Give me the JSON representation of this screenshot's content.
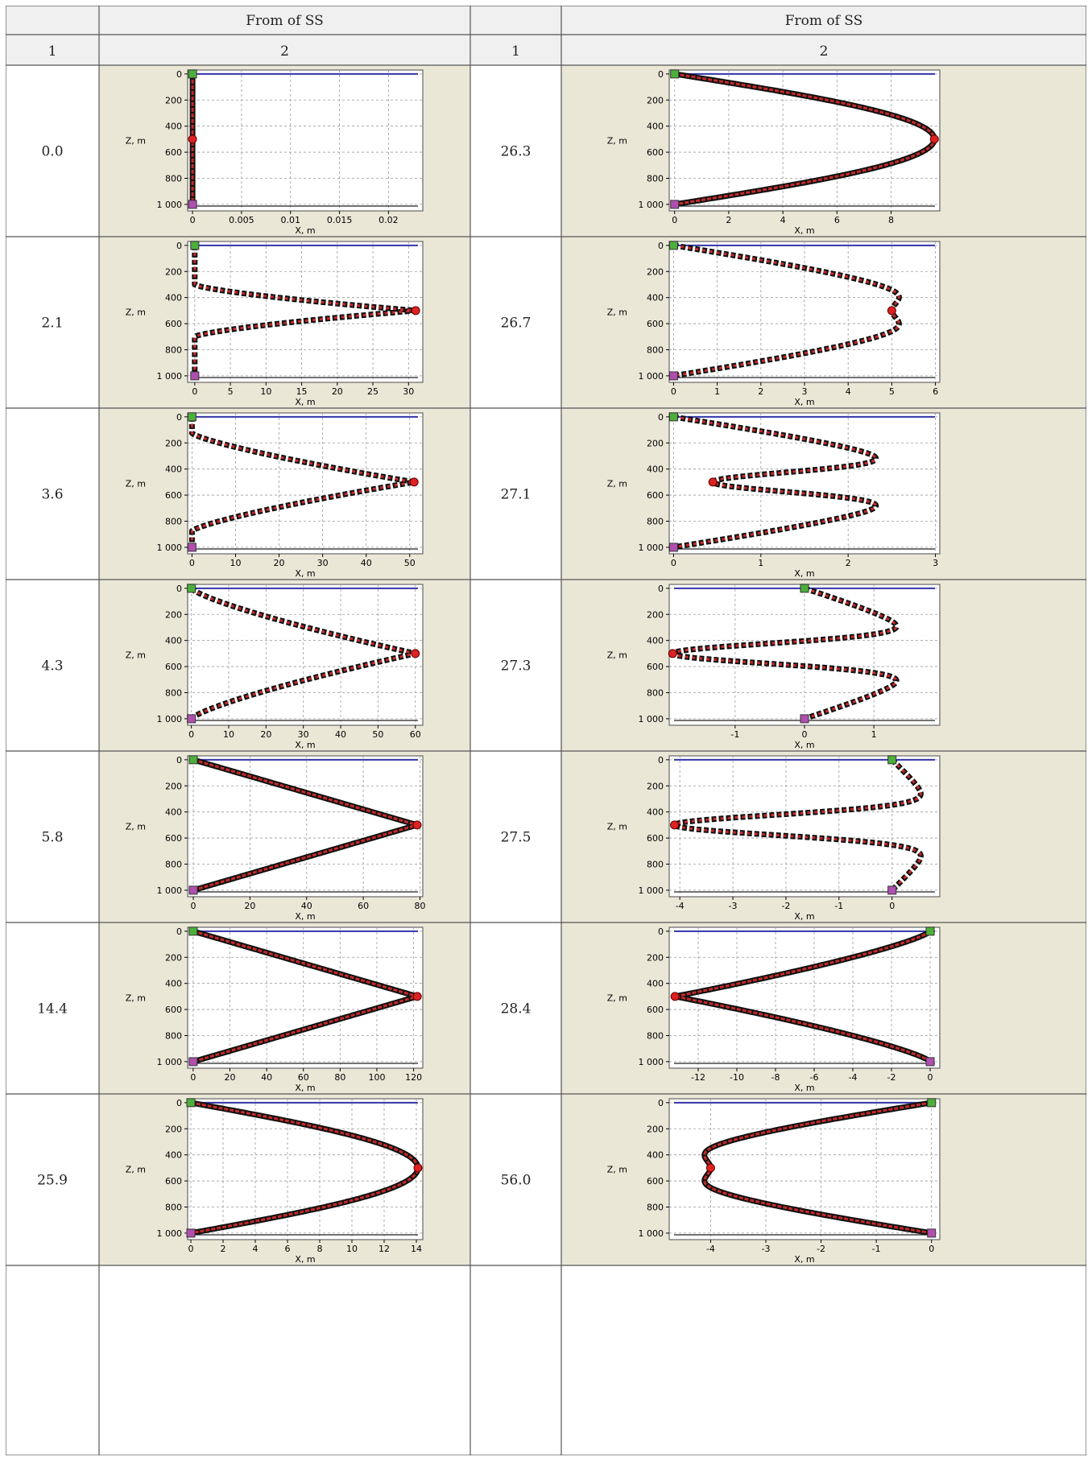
{
  "table": {
    "header1": [
      "",
      "From of SS",
      "",
      "From of SS"
    ],
    "header2": [
      "1",
      "2",
      "1",
      "2"
    ]
  },
  "axis_labels": {
    "y": "Z, m",
    "x": "X, m"
  },
  "colors": {
    "surface_line": "#3333aa",
    "bottom_line": "#222222",
    "curve_outer": "#111111",
    "curve_inner": "#c42a2a",
    "top_marker": "#4caf3a",
    "bottom_marker": "#b04fb0",
    "mid_marker": "#dd2222"
  },
  "chart_data": [
    {
      "type": "line",
      "label": "0.0",
      "ylabel": "Z, m",
      "xlabel": "X, m",
      "xlim": [
        -0.0005,
        0.0235
      ],
      "ylim": [
        1050,
        -30
      ],
      "xticks": [
        0,
        0.005,
        0.01,
        0.015,
        0.02
      ],
      "xticklabels": [
        "0",
        "0.005",
        "0.01",
        "0.015",
        "0.02"
      ],
      "yticks": [
        0,
        200,
        400,
        600,
        800,
        1000
      ],
      "yticklabels": [
        "0",
        "200",
        "400",
        "600",
        "800",
        "1 000"
      ],
      "shape": "vertical",
      "x_mid": 0,
      "x_top": 0,
      "x_bot": 0,
      "dash": 0
    },
    {
      "type": "line",
      "label": "2.1",
      "ylabel": "Z, m",
      "xlabel": "X, m",
      "xlim": [
        -1,
        32
      ],
      "ylim": [
        1050,
        -30
      ],
      "xticks": [
        0,
        5,
        10,
        15,
        20,
        25,
        30
      ],
      "xticklabels": [
        "0",
        "5",
        "10",
        "15",
        "20",
        "25",
        "30"
      ],
      "yticks": [
        0,
        200,
        400,
        600,
        800,
        1000
      ],
      "yticklabels": [
        "0",
        "200",
        "400",
        "600",
        "800",
        "1 000"
      ],
      "shape": "spike",
      "x_mid": 31,
      "x_top": 0,
      "x_bot": 0,
      "dash": 1
    },
    {
      "type": "line",
      "label": "3.6",
      "ylabel": "Z, m",
      "xlabel": "X, m",
      "xlim": [
        -1,
        53
      ],
      "ylim": [
        1050,
        -30
      ],
      "xticks": [
        0,
        10,
        20,
        30,
        40,
        50
      ],
      "xticklabels": [
        "0",
        "10",
        "20",
        "30",
        "40",
        "50"
      ],
      "yticks": [
        0,
        200,
        400,
        600,
        800,
        1000
      ],
      "yticklabels": [
        "0",
        "200",
        "400",
        "600",
        "800",
        "1 000"
      ],
      "shape": "spike2",
      "x_mid": 51,
      "x_top": 0,
      "x_bot": 0,
      "dash": 1
    },
    {
      "type": "line",
      "label": "4.3",
      "ylabel": "Z, m",
      "xlabel": "X, m",
      "xlim": [
        -1,
        62
      ],
      "ylim": [
        1050,
        -30
      ],
      "xticks": [
        0,
        10,
        20,
        30,
        40,
        50,
        60
      ],
      "xticklabels": [
        "0",
        "10",
        "20",
        "30",
        "40",
        "50",
        "60"
      ],
      "yticks": [
        0,
        200,
        400,
        600,
        800,
        1000
      ],
      "yticklabels": [
        "0",
        "200",
        "400",
        "600",
        "800",
        "1 000"
      ],
      "shape": "concave",
      "x_mid": 60,
      "x_top": 0,
      "x_bot": 0,
      "dash": 1
    },
    {
      "type": "line",
      "label": "5.8",
      "ylabel": "Z, m",
      "xlabel": "X, m",
      "xlim": [
        -2,
        81
      ],
      "ylim": [
        1050,
        -30
      ],
      "xticks": [
        0,
        20,
        40,
        60,
        80
      ],
      "xticklabels": [
        "0",
        "20",
        "40",
        "60",
        "80"
      ],
      "yticks": [
        0,
        200,
        400,
        600,
        800,
        1000
      ],
      "yticklabels": [
        "0",
        "200",
        "400",
        "600",
        "800",
        "1 000"
      ],
      "shape": "linear",
      "x_mid": 79,
      "x_top": 0,
      "x_bot": 0,
      "dash": 0
    },
    {
      "type": "line",
      "label": "14.4",
      "ylabel": "Z, m",
      "xlabel": "X, m",
      "xlim": [
        -3,
        125
      ],
      "ylim": [
        1050,
        -30
      ],
      "xticks": [
        0,
        20,
        40,
        60,
        80,
        100,
        120
      ],
      "xticklabels": [
        "0",
        "20",
        "40",
        "60",
        "80",
        "100",
        "120"
      ],
      "yticks": [
        0,
        200,
        400,
        600,
        800,
        1000
      ],
      "yticklabels": [
        "0",
        "200",
        "400",
        "600",
        "800",
        "1 000"
      ],
      "shape": "linear",
      "x_mid": 122,
      "x_top": 0,
      "x_bot": 0,
      "dash": 0
    },
    {
      "type": "line",
      "label": "25.9",
      "ylabel": "Z, m",
      "xlabel": "X, m",
      "xlim": [
        -0.2,
        14.4
      ],
      "ylim": [
        1050,
        -30
      ],
      "xticks": [
        0,
        2,
        4,
        6,
        8,
        10,
        12,
        14
      ],
      "xticklabels": [
        "0",
        "2",
        "4",
        "6",
        "8",
        "10",
        "12",
        "14"
      ],
      "yticks": [
        0,
        200,
        400,
        600,
        800,
        1000
      ],
      "yticklabels": [
        "0",
        "200",
        "400",
        "600",
        "800",
        "1 000"
      ],
      "shape": "sine",
      "x_mid": 14.1,
      "x_top": 0,
      "x_bot": 0,
      "dash": 0
    },
    {
      "type": "line",
      "label": "26.3",
      "ylabel": "Z, m",
      "xlabel": "X, m",
      "xlim": [
        -0.2,
        9.8
      ],
      "ylim": [
        1050,
        -30
      ],
      "xticks": [
        0,
        2,
        4,
        6,
        8
      ],
      "xticklabels": [
        "0",
        "2",
        "4",
        "6",
        "8"
      ],
      "yticks": [
        0,
        200,
        400,
        600,
        800,
        1000
      ],
      "yticklabels": [
        "0",
        "200",
        "400",
        "600",
        "800",
        "1 000"
      ],
      "shape": "sine",
      "x_mid": 9.6,
      "x_top": 0,
      "x_bot": 0,
      "dash": 0
    },
    {
      "type": "line",
      "label": "26.7",
      "ylabel": "Z, m",
      "xlabel": "X, m",
      "xlim": [
        -0.1,
        6.1
      ],
      "ylim": [
        1050,
        -30
      ],
      "xticks": [
        0,
        1,
        2,
        3,
        4,
        5,
        6
      ],
      "xticklabels": [
        "0",
        "1",
        "2",
        "3",
        "4",
        "5",
        "6"
      ],
      "yticks": [
        0,
        200,
        400,
        600,
        800,
        1000
      ],
      "yticklabels": [
        "0",
        "200",
        "400",
        "600",
        "800",
        "1 000"
      ],
      "shape": "mode2",
      "x_mid": 5.0,
      "x_top": 0,
      "x_bot": 0,
      "amp": 5.8,
      "dash": 1
    },
    {
      "type": "line",
      "label": "27.1",
      "ylabel": "Z, m",
      "xlabel": "X, m",
      "xlim": [
        -0.05,
        3.05
      ],
      "ylim": [
        1050,
        -30
      ],
      "xticks": [
        0,
        1,
        2,
        3
      ],
      "xticklabels": [
        "0",
        "1",
        "2",
        "3"
      ],
      "yticks": [
        0,
        200,
        400,
        600,
        800,
        1000
      ],
      "yticklabels": [
        "0",
        "200",
        "400",
        "600",
        "800",
        "1 000"
      ],
      "shape": "mode2",
      "x_mid": 0.45,
      "x_top": 0,
      "x_bot": 0,
      "amp": 2.95,
      "dash": 1
    },
    {
      "type": "line",
      "label": "27.3",
      "ylabel": "Z, m",
      "xlabel": "X, m",
      "xlim": [
        -1.95,
        1.95
      ],
      "ylim": [
        1050,
        -30
      ],
      "xticks": [
        -1,
        0,
        1
      ],
      "xticklabels": [
        "-1",
        "0",
        "1"
      ],
      "yticks": [
        0,
        200,
        400,
        600,
        800,
        1000
      ],
      "yticklabels": [
        "0",
        "200",
        "400",
        "600",
        "800",
        "1 000"
      ],
      "shape": "mode2",
      "x_mid": -1.9,
      "x_top": 0,
      "x_bot": 0,
      "amp": 1.8,
      "dash": 1
    },
    {
      "type": "line",
      "label": "27.5",
      "ylabel": "Z, m",
      "xlabel": "X, m",
      "xlim": [
        -4.2,
        0.9
      ],
      "ylim": [
        1050,
        -30
      ],
      "xticks": [
        -4,
        -3,
        -2,
        -1,
        0
      ],
      "xticklabels": [
        "-4",
        "-3",
        "-2",
        "-1",
        "0"
      ],
      "yticks": [
        0,
        200,
        400,
        600,
        800,
        1000
      ],
      "yticklabels": [
        "0",
        "200",
        "400",
        "600",
        "800",
        "1 000"
      ],
      "shape": "mode2",
      "x_mid": -4.1,
      "x_top": 0,
      "x_bot": 0,
      "amp": 0.8,
      "dash": 1
    },
    {
      "type": "line",
      "label": "28.4",
      "ylabel": "Z, m",
      "xlabel": "X, m",
      "xlim": [
        -13.5,
        0.5
      ],
      "ylim": [
        1050,
        -30
      ],
      "xticks": [
        -12,
        -10,
        -8,
        -6,
        -4,
        -2,
        0
      ],
      "xticklabels": [
        "-12",
        "-10",
        "-8",
        "-6",
        "-4",
        "-2",
        "0"
      ],
      "yticks": [
        0,
        200,
        400,
        600,
        800,
        1000
      ],
      "yticklabels": [
        "0",
        "200",
        "400",
        "600",
        "800",
        "1 000"
      ],
      "shape": "concave",
      "x_mid": -13.2,
      "x_top": 0,
      "x_bot": 0,
      "dash": 0
    },
    {
      "type": "line",
      "label": "56.0",
      "ylabel": "Z, m",
      "xlabel": "X, m",
      "xlim": [
        -4.75,
        0.15
      ],
      "ylim": [
        1050,
        -30
      ],
      "xticks": [
        -4,
        -3,
        -2,
        -1,
        0
      ],
      "xticklabels": [
        "-4",
        "-3",
        "-2",
        "-1",
        "0"
      ],
      "yticks": [
        0,
        200,
        400,
        600,
        800,
        1000
      ],
      "yticklabels": [
        "0",
        "200",
        "400",
        "600",
        "800",
        "1 000"
      ],
      "shape": "mode2",
      "x_mid": -4.0,
      "x_top": 0,
      "x_bot": 0,
      "amp": -4.6,
      "dash": 0
    }
  ]
}
